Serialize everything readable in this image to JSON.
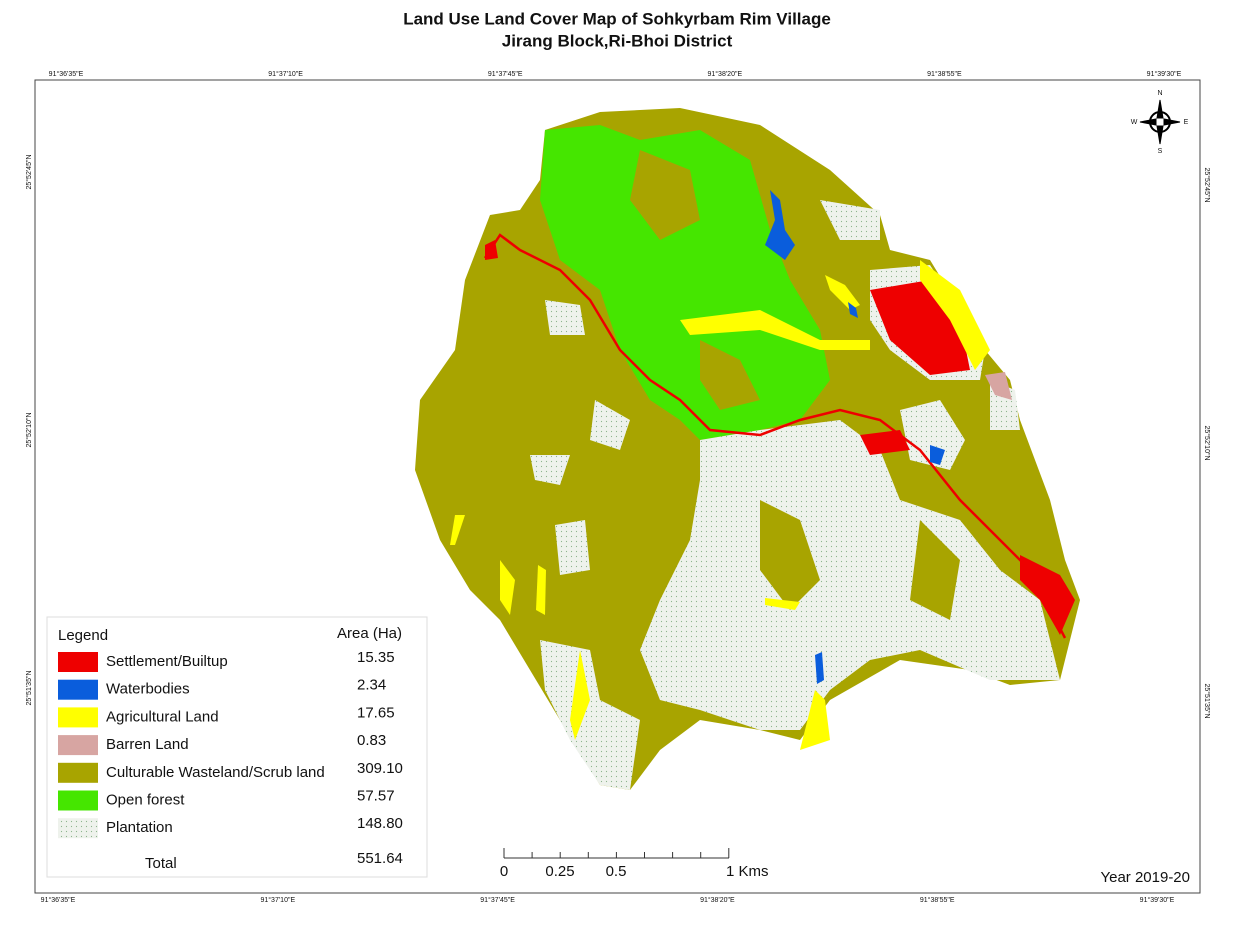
{
  "title": [
    "Land Use Land Cover Map of Sohkyrbam Rim Village",
    "Jirang Block,Ri-Bhoi District"
  ],
  "graticule": {
    "top": [
      "91°36'35\"E",
      "91°37'10\"E",
      "91°37'45\"E",
      "91°38'20\"E",
      "91°38'55\"E",
      "91°39'30\"E"
    ],
    "bottom": [
      "91°36'35\"E",
      "91°37'10\"E",
      "91°37'45\"E",
      "91°38'20\"E",
      "91°38'55\"E",
      "91°39'30\"E"
    ],
    "left": [
      "25°52'45\"N",
      "25°52'10\"N",
      "25°51'35\"N"
    ],
    "right": [
      "25°52'45\"N",
      "25°52'10\"N",
      "25°51'35\"N"
    ]
  },
  "compass": {
    "n": "N",
    "e": "E",
    "s": "S",
    "w": "W"
  },
  "legend": {
    "title": "Legend",
    "column": "Area (Ha)",
    "items": [
      {
        "label": "Settlement/Builtup",
        "area": "15.35",
        "color": "#ee0000"
      },
      {
        "label": "Waterbodies",
        "area": "2.34",
        "color": "#0a5ddc"
      },
      {
        "label": "Agricultural Land",
        "area": "17.65",
        "color": "#ffff00"
      },
      {
        "label": "Barren Land",
        "area": "0.83",
        "color": "#d7a5a2"
      },
      {
        "label": "Culturable Wasteland/Scrub land",
        "area": "309.10",
        "color": "#a8a400"
      },
      {
        "label": "Open forest",
        "area": "57.57",
        "color": "#45e600"
      },
      {
        "label": "Plantation",
        "area": "148.80",
        "color": "#eef2ec"
      }
    ],
    "total_label": "Total",
    "total": "551.64"
  },
  "scale": {
    "ticks": [
      "0",
      "0.25",
      "0.5",
      "1 Kms"
    ]
  },
  "year": "Year 2019-20"
}
